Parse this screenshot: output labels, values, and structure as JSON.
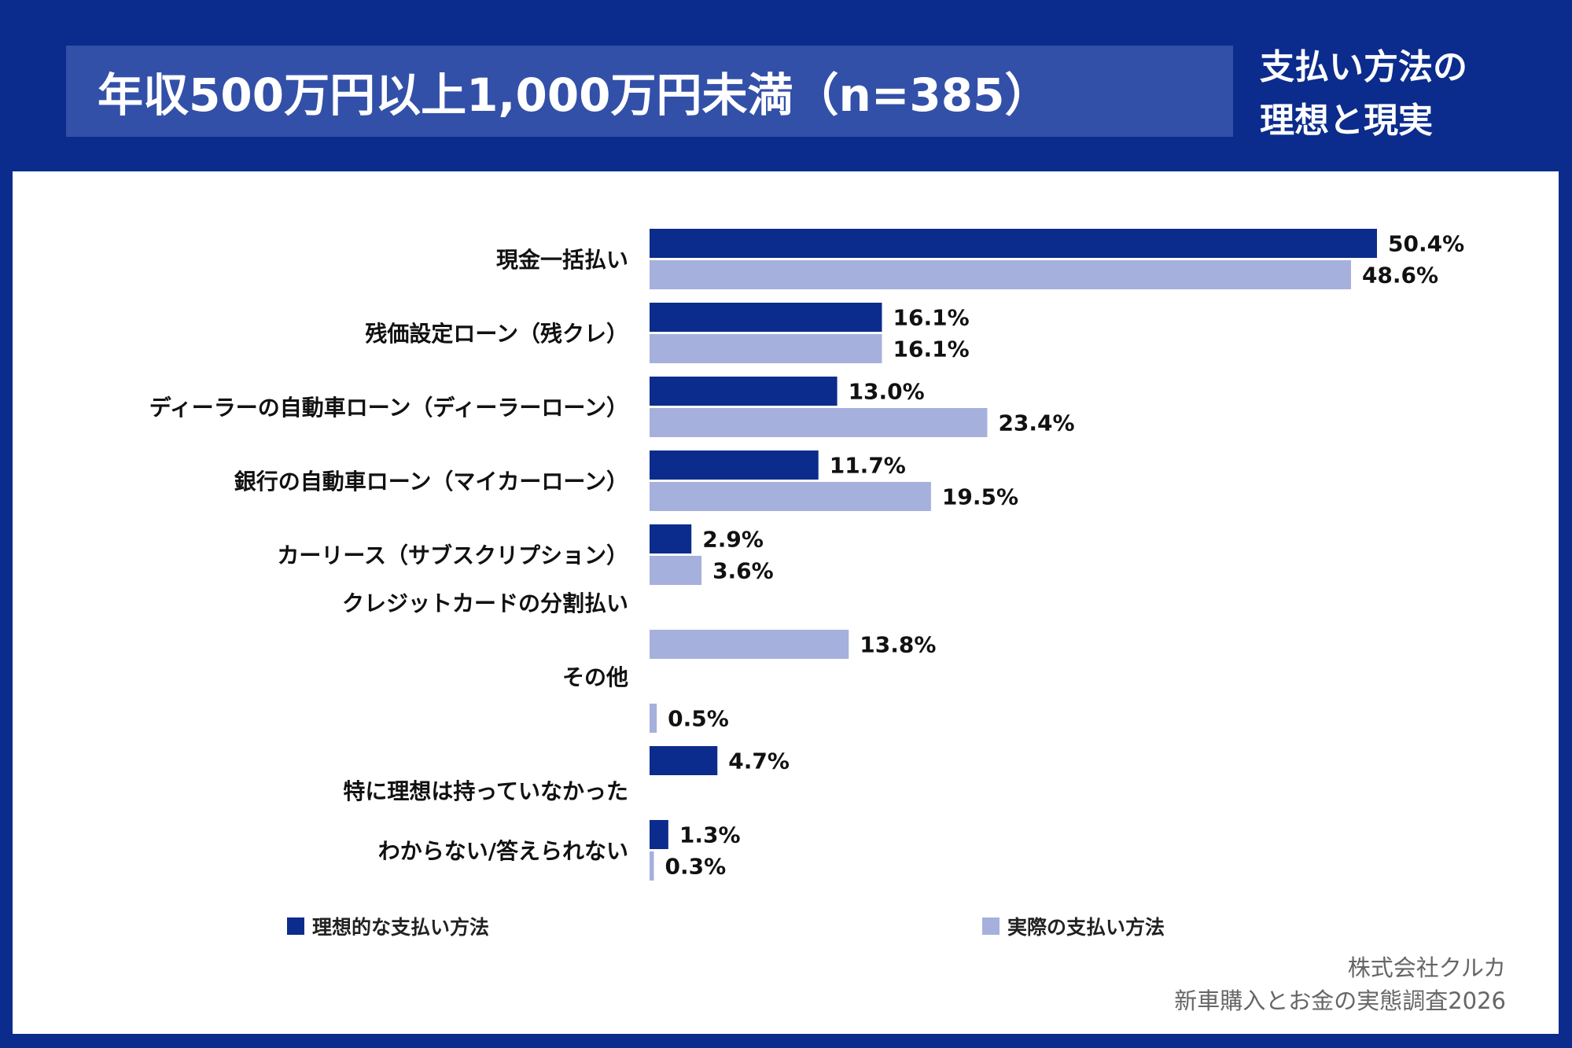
{
  "header": {
    "title": "年収500万円以上1,000万円未満（n=385）",
    "subtitle_line1": "支払い方法の",
    "subtitle_line2": "理想と現実"
  },
  "colors": {
    "background": "#0b2c8c",
    "title_bar": "#3350a8",
    "ideal": "#0b2c8c",
    "actual": "#a6b0dc"
  },
  "legend": {
    "ideal_label": "理想的な支払い方法",
    "actual_label": "実際の支払い方法"
  },
  "source": {
    "line1": "株式会社クルカ",
    "line2": "新車購入とお金の実態調査2026"
  },
  "chart_data": {
    "type": "bar",
    "orientation": "horizontal",
    "unit": "%",
    "xlim": [
      0,
      50.4
    ],
    "categories": [
      "現金一括払い",
      "残価設定ローン（残クレ）",
      "ディーラーの自動車ローン（ディーラーローン）",
      "銀行の自動車ローン（マイカーローン）",
      "カーリース（サブスクリプション）",
      "クレジットカードの分割払い",
      "その他",
      "特に理想は持っていなかった",
      "わからない/答えられない"
    ],
    "series": [
      {
        "name": "理想的な支払い方法",
        "values": [
          50.4,
          16.1,
          13.0,
          11.7,
          2.9,
          null,
          null,
          4.7,
          1.3
        ]
      },
      {
        "name": "実際の支払い方法",
        "values": [
          48.6,
          16.1,
          23.4,
          19.5,
          3.6,
          13.8,
          0.5,
          null,
          0.3
        ]
      }
    ],
    "data_labels": [
      [
        "50.4%",
        "16.1%",
        "13.0%",
        "11.7%",
        "2.9%",
        null,
        null,
        "4.7%",
        "1.3%"
      ],
      [
        "48.6%",
        "16.1%",
        "23.4%",
        "19.5%",
        "3.6%",
        "13.8%",
        "0.5%",
        null,
        "0.3%"
      ]
    ],
    "legend_position": "bottom",
    "grid": false
  }
}
